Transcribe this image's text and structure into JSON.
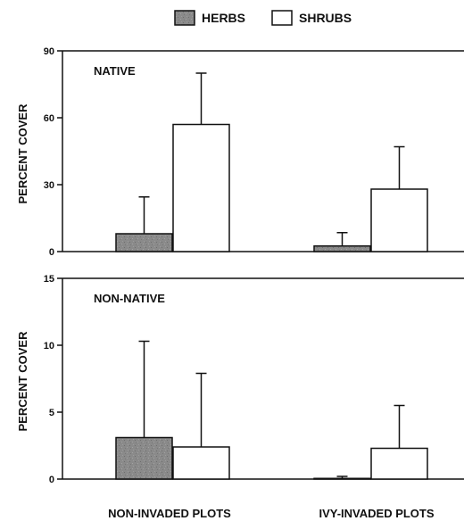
{
  "legend": {
    "herbs_label": "HERBS",
    "shrubs_label": "SHRUBS"
  },
  "x_axis": {
    "categories": [
      "NON-INVADED PLOTS",
      "IVY-INVADED PLOTS"
    ]
  },
  "colors": {
    "herbs": "#8a8a8a",
    "shrubs": "#ffffff",
    "axis": "#111111"
  },
  "chart_data": [
    {
      "type": "bar",
      "title": "NATIVE",
      "ylabel": "PERCENT COVER",
      "categories": [
        "NON-INVADED PLOTS",
        "IVY-INVADED PLOTS"
      ],
      "ylim": [
        0,
        90
      ],
      "yticks": [
        0,
        30,
        60,
        90
      ],
      "series": [
        {
          "name": "HERBS",
          "values": [
            8,
            2.5
          ],
          "error_upper": [
            24.5,
            8.5
          ]
        },
        {
          "name": "SHRUBS",
          "values": [
            57,
            28
          ],
          "error_upper": [
            80,
            47
          ]
        }
      ],
      "legend": "top-center",
      "grid": false
    },
    {
      "type": "bar",
      "title": "NON-NATIVE",
      "ylabel": "PERCENT COVER",
      "categories": [
        "NON-INVADED PLOTS",
        "IVY-INVADED PLOTS"
      ],
      "ylim": [
        0,
        15
      ],
      "yticks": [
        0,
        5,
        10,
        15
      ],
      "series": [
        {
          "name": "HERBS",
          "values": [
            3.1,
            0.05
          ],
          "error_upper": [
            10.3,
            0.2
          ]
        },
        {
          "name": "SHRUBS",
          "values": [
            2.4,
            2.3
          ],
          "error_upper": [
            7.9,
            5.5
          ]
        }
      ],
      "legend": "top-center",
      "grid": false
    }
  ]
}
